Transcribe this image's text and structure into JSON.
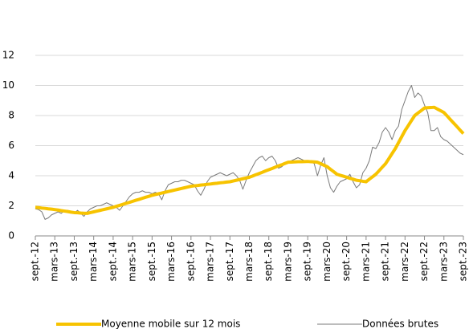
{
  "chart_data": {
    "type": "line",
    "categories": [
      "sept.-12",
      null,
      null,
      null,
      null,
      null,
      "mars-13",
      null,
      null,
      null,
      null,
      null,
      "sept.-13",
      null,
      null,
      null,
      null,
      null,
      "mars-14",
      null,
      null,
      null,
      null,
      null,
      "sept.-14",
      null,
      null,
      null,
      null,
      null,
      "mars-15",
      null,
      null,
      null,
      null,
      null,
      "sept.-15",
      null,
      null,
      null,
      null,
      null,
      "mars-16",
      null,
      null,
      null,
      null,
      null,
      "sept.-16",
      null,
      null,
      null,
      null,
      null,
      "mars-17",
      null,
      null,
      null,
      null,
      null,
      "sept.-17",
      null,
      null,
      null,
      null,
      null,
      "mars-18",
      null,
      null,
      null,
      null,
      null,
      "sept.-18",
      null,
      null,
      null,
      null,
      null,
      "mars-19",
      null,
      null,
      null,
      null,
      null,
      "sept.-19",
      null,
      null,
      null,
      null,
      null,
      "mars-20",
      null,
      null,
      null,
      null,
      null,
      "sept.-20",
      null,
      null,
      null,
      null,
      null,
      "mars-21",
      null,
      null,
      null,
      null,
      null,
      "sept.-21",
      null,
      null,
      null,
      null,
      null,
      "mars-22",
      null,
      null,
      null,
      null,
      null,
      "sept.-22",
      null,
      null,
      null,
      null,
      null,
      "mars-23",
      null,
      null,
      null,
      null,
      null,
      "sept.-23"
    ],
    "series": [
      {
        "name": "Moyenne mobile sur 12 mois",
        "color": "#f7c300",
        "width": 4,
        "values": [
          1.9,
          1.88,
          1.85,
          1.83,
          1.8,
          1.78,
          1.75,
          1.72,
          1.68,
          1.65,
          1.62,
          1.58,
          1.55,
          1.54,
          1.52,
          1.51,
          1.5,
          1.55,
          1.6,
          1.65,
          1.7,
          1.75,
          1.8,
          1.85,
          1.9,
          1.97,
          2.03,
          2.1,
          2.17,
          2.23,
          2.3,
          2.37,
          2.43,
          2.5,
          2.57,
          2.63,
          2.7,
          2.75,
          2.8,
          2.85,
          2.9,
          2.95,
          3.0,
          3.05,
          3.1,
          3.15,
          3.2,
          3.25,
          3.3,
          3.33,
          3.35,
          3.38,
          3.4,
          3.43,
          3.45,
          3.48,
          3.5,
          3.53,
          3.55,
          3.58,
          3.6,
          3.65,
          3.7,
          3.75,
          3.8,
          3.85,
          3.9,
          3.98,
          4.07,
          4.15,
          4.23,
          4.32,
          4.4,
          4.48,
          4.57,
          4.65,
          4.73,
          4.82,
          4.9,
          4.91,
          4.92,
          4.93,
          4.93,
          4.94,
          4.95,
          4.93,
          4.92,
          4.9,
          4.8,
          4.7,
          4.6,
          4.43,
          4.27,
          4.1,
          4.03,
          3.97,
          3.9,
          3.83,
          3.77,
          3.7,
          3.67,
          3.63,
          3.6,
          3.77,
          3.93,
          4.1,
          4.33,
          4.57,
          4.8,
          5.13,
          5.47,
          5.8,
          6.2,
          6.6,
          7.0,
          7.33,
          7.67,
          8.0,
          8.17,
          8.33,
          8.5,
          8.52,
          8.53,
          8.55,
          8.43,
          8.32,
          8.2,
          7.97,
          7.73,
          7.5,
          7.27,
          7.03,
          6.8
        ]
      },
      {
        "name": "Données brutes",
        "color": "#7a7a7a",
        "width": 1,
        "values": [
          1.8,
          1.75,
          1.6,
          1.1,
          1.2,
          1.4,
          1.5,
          1.6,
          1.5,
          1.7,
          1.7,
          1.6,
          1.5,
          1.7,
          1.5,
          1.3,
          1.6,
          1.8,
          1.9,
          2.0,
          2.0,
          2.1,
          2.2,
          2.1,
          2.0,
          1.9,
          1.7,
          2.0,
          2.3,
          2.6,
          2.8,
          2.9,
          2.9,
          3.0,
          2.9,
          2.9,
          2.8,
          2.9,
          2.8,
          2.4,
          3.0,
          3.4,
          3.5,
          3.6,
          3.6,
          3.7,
          3.7,
          3.6,
          3.5,
          3.4,
          3.0,
          2.7,
          3.1,
          3.6,
          3.9,
          4.0,
          4.1,
          4.2,
          4.1,
          4.0,
          4.1,
          4.2,
          4.0,
          3.7,
          3.1,
          3.7,
          4.2,
          4.6,
          5.0,
          5.2,
          5.3,
          5.0,
          5.2,
          5.3,
          5.0,
          4.5,
          4.6,
          4.8,
          4.9,
          5.0,
          5.1,
          5.2,
          5.1,
          5.0,
          4.9,
          5.0,
          4.8,
          4.0,
          4.7,
          5.2,
          4.0,
          3.2,
          2.9,
          3.3,
          3.6,
          3.7,
          3.8,
          4.1,
          3.6,
          3.2,
          3.4,
          4.2,
          4.5,
          5.0,
          5.9,
          5.8,
          6.2,
          6.9,
          7.2,
          6.9,
          6.4,
          7.0,
          7.3,
          8.4,
          9.0,
          9.6,
          10.0,
          9.2,
          9.5,
          9.3,
          8.7,
          8.2,
          7.0,
          7.0,
          7.2,
          6.6,
          6.4,
          6.3,
          6.1,
          5.9,
          5.7,
          5.5,
          5.4
        ]
      }
    ],
    "ylim": [
      0,
      12
    ],
    "yticks": [
      0,
      2,
      4,
      6,
      8,
      10,
      12
    ],
    "grid": true,
    "legend": "bottom"
  }
}
